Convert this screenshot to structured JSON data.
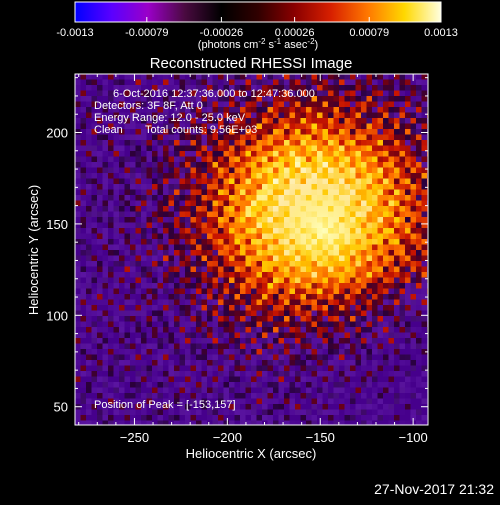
{
  "colorbar": {
    "ticks": [
      "-0.0013",
      "-0.00079",
      "-0.00026",
      "0.00026",
      "0.00079",
      "0.0013"
    ],
    "tick_values": [
      -0.0013,
      -0.00079,
      -0.00026,
      0.00026,
      0.00079,
      0.0013
    ],
    "units": "(photons cm",
    "units_exp1": "-2",
    "units_mid": " s",
    "units_exp2": "-1",
    "units_end": " asec",
    "units_exp3": "-2",
    "units_close": ")",
    "range": [
      -0.0013,
      0.0013
    ],
    "palette": [
      "#0000ff",
      "#5a00ff",
      "#9a00c8",
      "#4a0a40",
      "#000000",
      "#300000",
      "#8a0000",
      "#d82000",
      "#ff7800",
      "#ffd800",
      "#ffffe0"
    ]
  },
  "chart_data": {
    "type": "heatmap",
    "title": "Reconstructed RHESSI Image",
    "xlabel": "Heliocentric X (arcsec)",
    "ylabel": "Heliocentric Y (arcsec)",
    "xlim": [
      -282,
      -92
    ],
    "ylim": [
      40,
      232
    ],
    "xticks": [
      -250,
      -200,
      -150,
      -100
    ],
    "xtick_labels": [
      "−250",
      "−200",
      "−150",
      "−100"
    ],
    "yticks": [
      50,
      100,
      150,
      200
    ],
    "ytick_labels": [
      "50",
      "100",
      "150",
      "200"
    ],
    "peak": [
      -153,
      157
    ],
    "annotations": {
      "time": "6-Oct-2016 12:37:36.000 to 12:47:36.000",
      "detectors": "Detectors: 3F 8F, Att 0",
      "energy": "Energy Range: 12.0 - 25.0 keV",
      "method": "Clean",
      "counts": "Total counts: 9.56E+03",
      "peak_label": "Position of Peak = [-153,157]"
    }
  },
  "footer": {
    "timestamp": "27-Nov-2017 21:32"
  }
}
